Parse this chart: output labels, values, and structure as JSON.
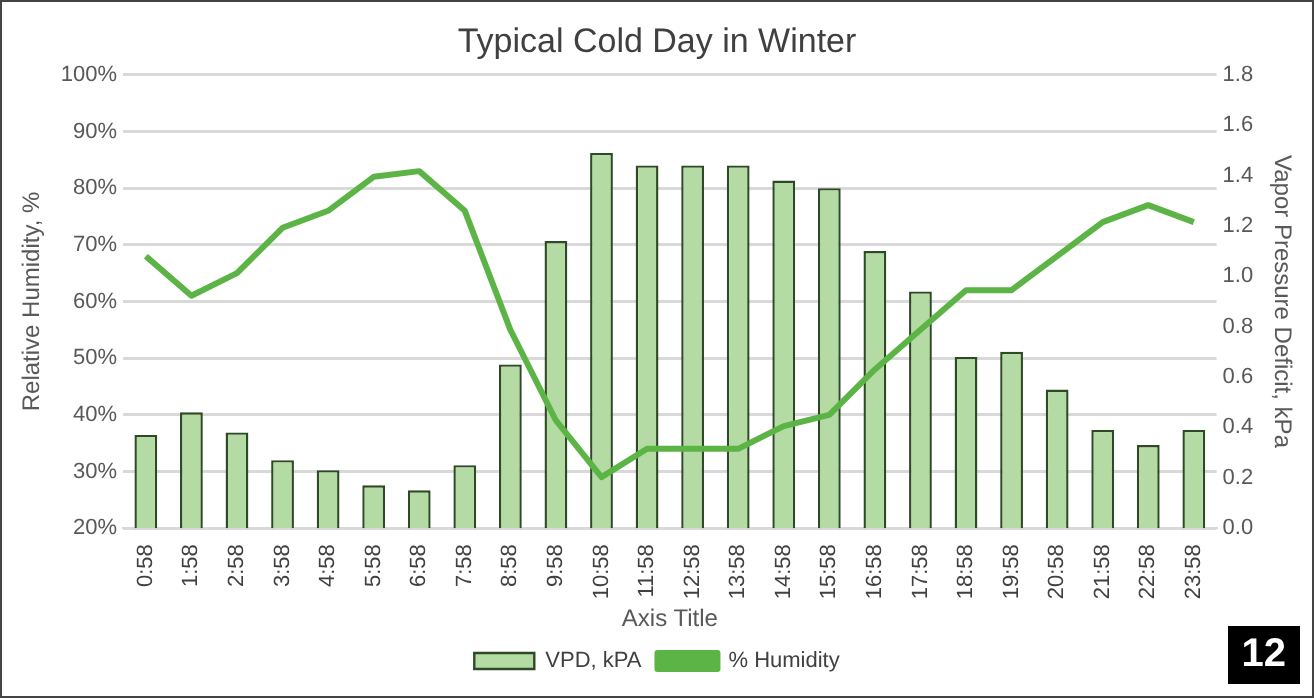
{
  "chart_data": {
    "type": "bar",
    "title": "Typical Cold Day in Winter",
    "xlabel": "Axis Title",
    "ylabel": "Relative Humidity, %",
    "y2label": "Vapor Pressure Deficit, kPa",
    "categories": [
      "0:58",
      "1:58",
      "2:58",
      "3:58",
      "4:58",
      "5:58",
      "6:58",
      "7:58",
      "8:58",
      "9:58",
      "10:58",
      "11:58",
      "12:58",
      "13:58",
      "14:58",
      "15:58",
      "16:58",
      "17:58",
      "18:58",
      "19:58",
      "20:58",
      "21:58",
      "22:58",
      "23:58"
    ],
    "series": [
      {
        "name": "VPD, kPA",
        "axis": "y2",
        "color": "#b5dba4",
        "values": [
          0.37,
          0.46,
          0.38,
          0.27,
          0.23,
          0.17,
          0.15,
          0.25,
          0.65,
          1.14,
          1.49,
          1.44,
          1.44,
          1.44,
          1.38,
          1.35,
          1.1,
          0.94,
          0.68,
          0.7,
          0.55,
          0.39,
          0.33,
          0.39
        ]
      },
      {
        "name": "% Humidity",
        "type": "line",
        "axis": "y",
        "color": "#5db446",
        "values": [
          68,
          61,
          65,
          73,
          76,
          82,
          83,
          76,
          55,
          39,
          29,
          34,
          34,
          34,
          38,
          40,
          48,
          55,
          62,
          62,
          68,
          74,
          77,
          74
        ]
      }
    ],
    "ylim": [
      20,
      100
    ],
    "yticks": [
      {
        "value": 20,
        "label": "20%"
      },
      {
        "value": 30,
        "label": "30%"
      },
      {
        "value": 40,
        "label": "40%"
      },
      {
        "value": 50,
        "label": "50%"
      },
      {
        "value": 60,
        "label": "60%"
      },
      {
        "value": 70,
        "label": "70%"
      },
      {
        "value": 80,
        "label": "80%"
      },
      {
        "value": 90,
        "label": "90%"
      },
      {
        "value": 100,
        "label": "100%"
      }
    ],
    "y2lim": [
      0,
      1.8
    ],
    "y2ticks": [
      {
        "value": 0,
        "label": "0.0"
      },
      {
        "value": 0.2,
        "label": "0.2"
      },
      {
        "value": 0.4,
        "label": "0.4"
      },
      {
        "value": 0.6,
        "label": "0.6"
      },
      {
        "value": 0.8,
        "label": "0.8"
      },
      {
        "value": 1,
        "label": "1.0"
      },
      {
        "value": 1.2,
        "label": "1.2"
      },
      {
        "value": 1.4,
        "label": "1.4"
      },
      {
        "value": 1.6,
        "label": "1.6"
      },
      {
        "value": 1.8,
        "label": "1.8"
      }
    ],
    "grid": "y",
    "legend": "bottom",
    "marker": "none",
    "line_style": "solid",
    "annotations": [
      "12"
    ]
  }
}
